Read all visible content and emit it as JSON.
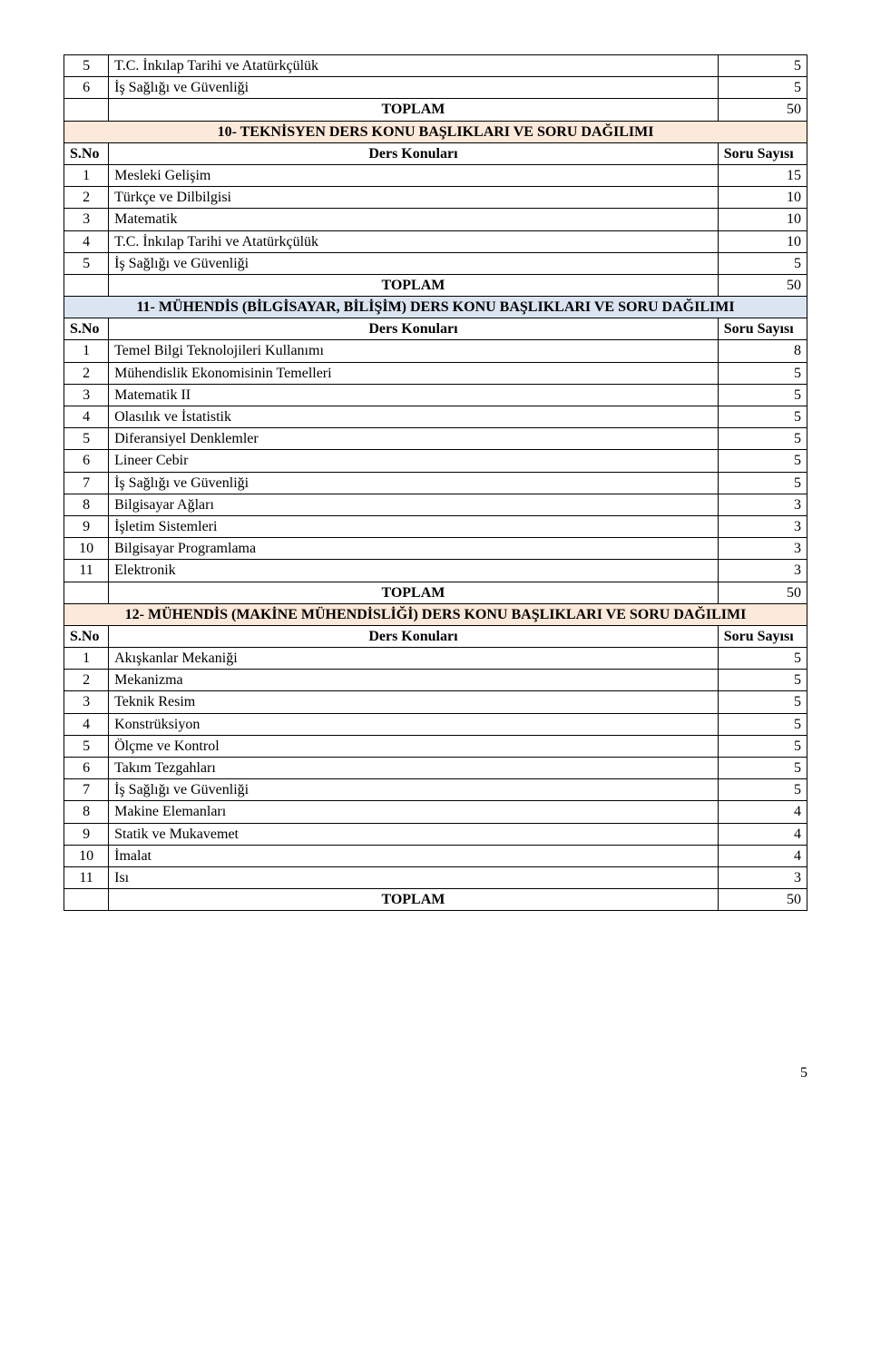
{
  "labels": {
    "sno": "S.No",
    "ders": "Ders Konuları",
    "soru": "Soru Sayısı",
    "toplam": "TOPLAM"
  },
  "sections": {
    "s10": "10- TEKNİSYEN DERS KONU BAŞLIKLARI VE SORU DAĞILIMI",
    "s11": "11- MÜHENDİS (BİLGİSAYAR, BİLİŞİM) DERS KONU BAŞLIKLARI VE SORU DAĞILIMI",
    "s12": "12-  MÜHENDİS (MAKİNE MÜHENDİSLİĞİ) DERS KONU BAŞLIKLARI VE SORU DAĞILIMI"
  },
  "pre": [
    {
      "n": "5",
      "label": "T.C. İnkılap Tarihi ve Atatürkçülük",
      "v": "5"
    },
    {
      "n": "6",
      "label": "İş Sağlığı ve Güvenliği",
      "v": "5"
    }
  ],
  "pre_total": "50",
  "t10": {
    "rows": [
      {
        "n": "1",
        "label": "Mesleki Gelişim",
        "v": "15"
      },
      {
        "n": "2",
        "label": "Türkçe ve Dilbilgisi",
        "v": "10"
      },
      {
        "n": "3",
        "label": "Matematik",
        "v": "10"
      },
      {
        "n": "4",
        "label": "T.C. İnkılap Tarihi ve Atatürkçülük",
        "v": "10"
      },
      {
        "n": "5",
        "label": "İş Sağlığı ve Güvenliği",
        "v": "5"
      }
    ],
    "total": "50"
  },
  "t11": {
    "rows": [
      {
        "n": "1",
        "label": "Temel Bilgi Teknolojileri Kullanımı",
        "v": "8"
      },
      {
        "n": "2",
        "label": "Mühendislik Ekonomisinin Temelleri",
        "v": "5"
      },
      {
        "n": "3",
        "label": "Matematik II",
        "v": "5"
      },
      {
        "n": "4",
        "label": "Olasılık ve İstatistik",
        "v": "5"
      },
      {
        "n": "5",
        "label": "Diferansiyel Denklemler",
        "v": "5"
      },
      {
        "n": "6",
        "label": "Lineer Cebir",
        "v": "5"
      },
      {
        "n": "7",
        "label": "İş Sağlığı ve Güvenliği",
        "v": "5"
      },
      {
        "n": "8",
        "label": "Bilgisayar Ağları",
        "v": "3"
      },
      {
        "n": "9",
        "label": "İşletim Sistemleri",
        "v": "3"
      },
      {
        "n": "10",
        "label": "Bilgisayar Programlama",
        "v": "3"
      },
      {
        "n": "11",
        "label": "Elektronik",
        "v": "3"
      }
    ],
    "total": "50"
  },
  "t12": {
    "rows": [
      {
        "n": "1",
        "label": "Akışkanlar Mekaniği",
        "v": "5"
      },
      {
        "n": "2",
        "label": "Mekanizma",
        "v": "5"
      },
      {
        "n": "3",
        "label": "Teknik Resim",
        "v": "5"
      },
      {
        "n": "4",
        "label": "Konstrüksiyon",
        "v": "5"
      },
      {
        "n": "5",
        "label": "Ölçme ve Kontrol",
        "v": "5"
      },
      {
        "n": "6",
        "label": "Takım Tezgahları",
        "v": "5"
      },
      {
        "n": "7",
        "label": "İş Sağlığı ve Güvenliği",
        "v": "5"
      },
      {
        "n": "8",
        "label": "Makine Elemanları",
        "v": "4"
      },
      {
        "n": "9",
        "label": "Statik ve Mukavemet",
        "v": "4"
      },
      {
        "n": "10",
        "label": "İmalat",
        "v": "4"
      },
      {
        "n": "11",
        "label": "Isı",
        "v": "3"
      }
    ],
    "total": "50"
  },
  "page_number": "5"
}
